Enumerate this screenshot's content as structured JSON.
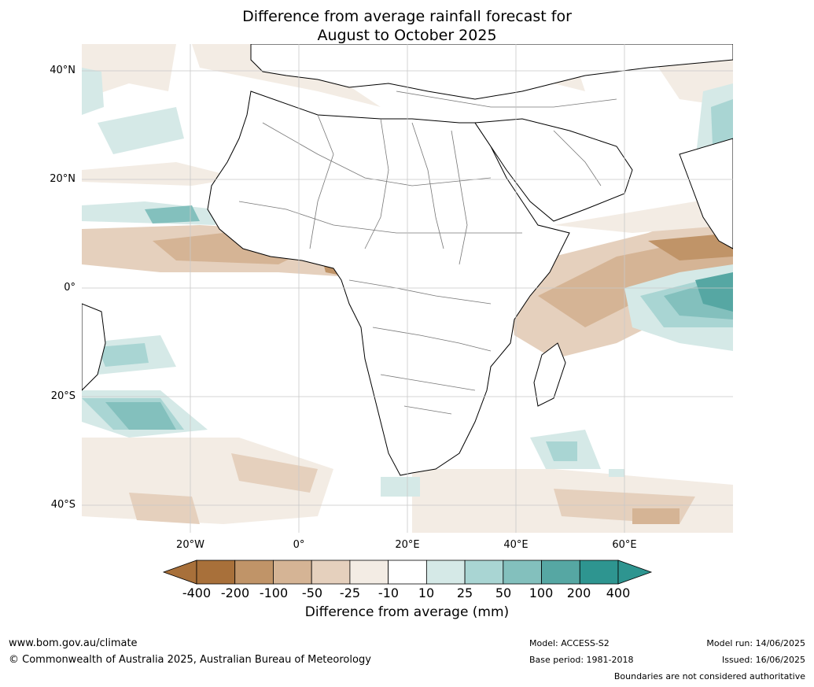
{
  "title": {
    "line1": "Difference from average rainfall forecast for",
    "line2": "August to October 2025"
  },
  "map": {
    "region": "Africa",
    "latitude_labels": [
      "40°N",
      "20°N",
      "0°",
      "20°S",
      "40°S"
    ],
    "longitude_labels": [
      "20°W",
      "0°",
      "20°E",
      "40°E",
      "60°E"
    ],
    "colors": {
      "ocean": "#ffffff",
      "coast": "#000000",
      "borders": "#777777",
      "grid": "#c8c8c8"
    }
  },
  "legend": {
    "title": "Difference from average (mm)",
    "tick_labels": [
      "-400",
      "-200",
      "-100",
      "-50",
      "-25",
      "-10",
      "10",
      "25",
      "50",
      "100",
      "200",
      "400"
    ],
    "colors": [
      "#a8703a",
      "#c09468",
      "#d5b495",
      "#e5d0bd",
      "#f3ece4",
      "#ffffff",
      "#d5e9e7",
      "#a9d5d3",
      "#83c0bd",
      "#56a7a3",
      "#2e9590"
    ]
  },
  "footer": {
    "website": "www.bom.gov.au/climate",
    "copyright": "© Commonwealth of Australia 2025, Australian Bureau of Meteorology",
    "model": "Model: ACCESS-S2",
    "base_period": "Base period: 1981-2018",
    "model_run": "Model run: 14/06/2025",
    "issued": "Issued: 16/06/2025",
    "disclaimer": "Boundaries are not considered authoritative"
  }
}
